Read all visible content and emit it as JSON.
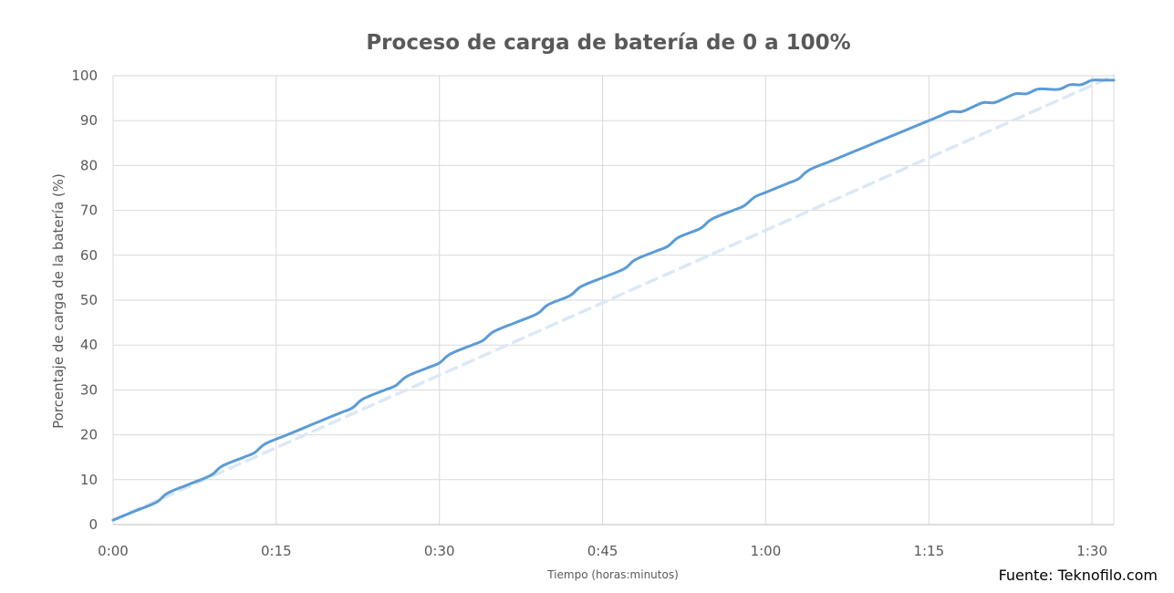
{
  "chart_data": {
    "type": "line",
    "title": "Proceso de carga de batería de 0 a 100%",
    "xlabel": "Tiempo (horas:minutos)",
    "ylabel": "Porcentaje de carga de la batería (%)",
    "x_unit": "minutes",
    "xlim": [
      0,
      92
    ],
    "ylim": [
      0,
      100
    ],
    "x_ticks": [
      {
        "value": 0,
        "label": "0:00"
      },
      {
        "value": 15,
        "label": "0:15"
      },
      {
        "value": 30,
        "label": "0:30"
      },
      {
        "value": 45,
        "label": "0:45"
      },
      {
        "value": 60,
        "label": "1:00"
      },
      {
        "value": 75,
        "label": "1:15"
      },
      {
        "value": 90,
        "label": "1:30"
      }
    ],
    "y_ticks": [
      {
        "value": 0,
        "label": "0"
      },
      {
        "value": 10,
        "label": "10"
      },
      {
        "value": 20,
        "label": "20"
      },
      {
        "value": 30,
        "label": "30"
      },
      {
        "value": 40,
        "label": "40"
      },
      {
        "value": 50,
        "label": "50"
      },
      {
        "value": 60,
        "label": "60"
      },
      {
        "value": 70,
        "label": "70"
      },
      {
        "value": 80,
        "label": "80"
      },
      {
        "value": 90,
        "label": "90"
      },
      {
        "value": 100,
        "label": "100"
      }
    ],
    "grid": true,
    "legend": "none",
    "series": [
      {
        "style": "solid",
        "color": "#5b9bd5",
        "x": [
          0,
          2,
          4,
          5,
          7,
          9,
          10,
          12,
          13,
          14,
          16,
          18,
          20,
          21,
          22,
          23,
          25,
          26,
          27,
          29,
          30,
          31,
          33,
          34,
          35,
          37,
          39,
          40,
          42,
          43,
          45,
          47,
          48,
          50,
          51,
          52,
          54,
          55,
          57,
          58,
          59,
          60,
          62,
          63,
          64,
          66,
          68,
          69,
          70,
          72,
          74,
          75,
          76,
          77,
          78,
          79,
          80,
          81,
          82,
          83,
          84,
          85,
          86,
          87,
          88,
          89,
          90,
          91,
          92
        ],
        "values": [
          1,
          3,
          5,
          7,
          9,
          11,
          13,
          15,
          16,
          18,
          20,
          22,
          24,
          25,
          26,
          28,
          30,
          31,
          33,
          35,
          36,
          38,
          40,
          41,
          43,
          45,
          47,
          49,
          51,
          53,
          55,
          57,
          59,
          61,
          62,
          64,
          66,
          68,
          70,
          71,
          73,
          74,
          76,
          77,
          79,
          81,
          83,
          84,
          85,
          87,
          89,
          90,
          91,
          92,
          92,
          93,
          94,
          94,
          95,
          96,
          96,
          97,
          97,
          97,
          98,
          98,
          99,
          99,
          99
        ]
      },
      {
        "style": "dashed",
        "color": "#dbe8f6",
        "x": [
          0,
          92
        ],
        "values": [
          1,
          100
        ]
      }
    ]
  },
  "source": "Fuente: Teknofilo.com"
}
